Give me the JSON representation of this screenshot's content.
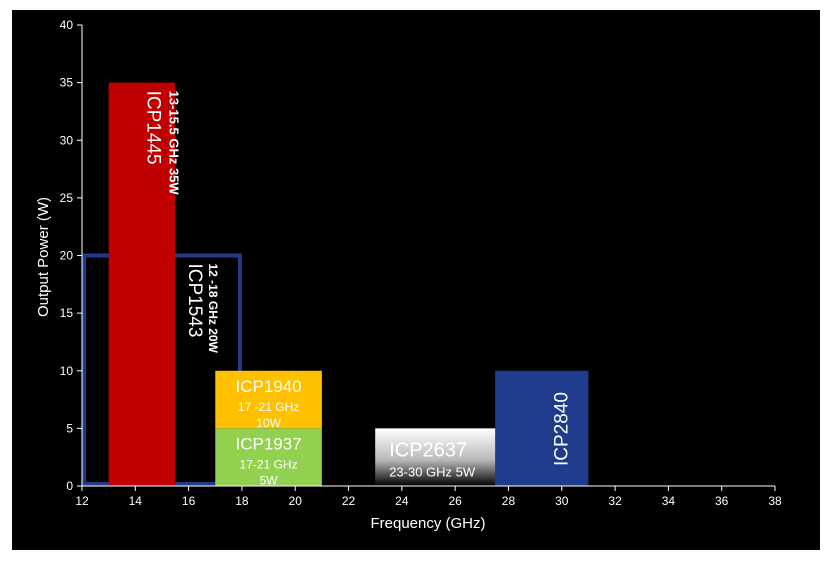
{
  "chart_data": {
    "type": "bar",
    "title": "",
    "xlabel": "Frequency (GHz)",
    "ylabel": "Output Power (W)",
    "xlim": [
      12,
      38
    ],
    "ylim": [
      0,
      40
    ],
    "x_ticks": [
      12,
      14,
      16,
      18,
      20,
      22,
      24,
      26,
      28,
      30,
      32,
      34,
      36,
      38
    ],
    "y_ticks": [
      0,
      5,
      10,
      15,
      20,
      25,
      30,
      35,
      40
    ],
    "grid": false,
    "legend": "none",
    "background": "#000000",
    "bars": [
      {
        "name": "ICP1543",
        "line1": "ICP1543",
        "line2": "12 -18 GHz 20W",
        "x0": 12,
        "x1": 18,
        "y0": 0,
        "y1": 20,
        "style": "outline",
        "color": "#1f3c8c",
        "text_color": "#ffffff",
        "orientation": "vertical"
      },
      {
        "name": "ICP1445",
        "line1": "ICP1445",
        "line2": "13-15.5 GHz 35W",
        "x0": 13,
        "x1": 15.5,
        "y0": 0,
        "y1": 35,
        "style": "fill",
        "color": "#c00000",
        "text_color": "#ffffff",
        "orientation": "vertical"
      },
      {
        "name": "ICP1940",
        "line1": "ICP1940",
        "line2": "17 -21 GHz",
        "line3": "10W",
        "x0": 17,
        "x1": 21,
        "y0": 5,
        "y1": 10,
        "style": "fill",
        "color": "#ffc000",
        "text_color": "#ffffff",
        "orientation": "horizontal"
      },
      {
        "name": "ICP1937",
        "line1": "ICP1937",
        "line2": "17-21 GHz",
        "line3": "5W",
        "x0": 17,
        "x1": 21,
        "y0": 0,
        "y1": 5,
        "style": "fill",
        "color": "#92d050",
        "text_color": "#ffffff",
        "orientation": "horizontal"
      },
      {
        "name": "ICP2637",
        "line1": "ICP2637",
        "line2": "23-30 GHz 5W",
        "x0": 23,
        "x1": 30,
        "y0": 0,
        "y1": 5,
        "style": "gradient",
        "color": "#ffffff",
        "color2": "#000000",
        "text_color": "#ffffff",
        "orientation": "horizontal"
      },
      {
        "name": "ICP2840",
        "line1": "ICP2840",
        "x0": 27.5,
        "x1": 31,
        "y0": 0,
        "y1": 10,
        "style": "fill",
        "color": "#1f3c8c",
        "text_color": "#ffffff",
        "orientation": "vertical"
      }
    ]
  }
}
